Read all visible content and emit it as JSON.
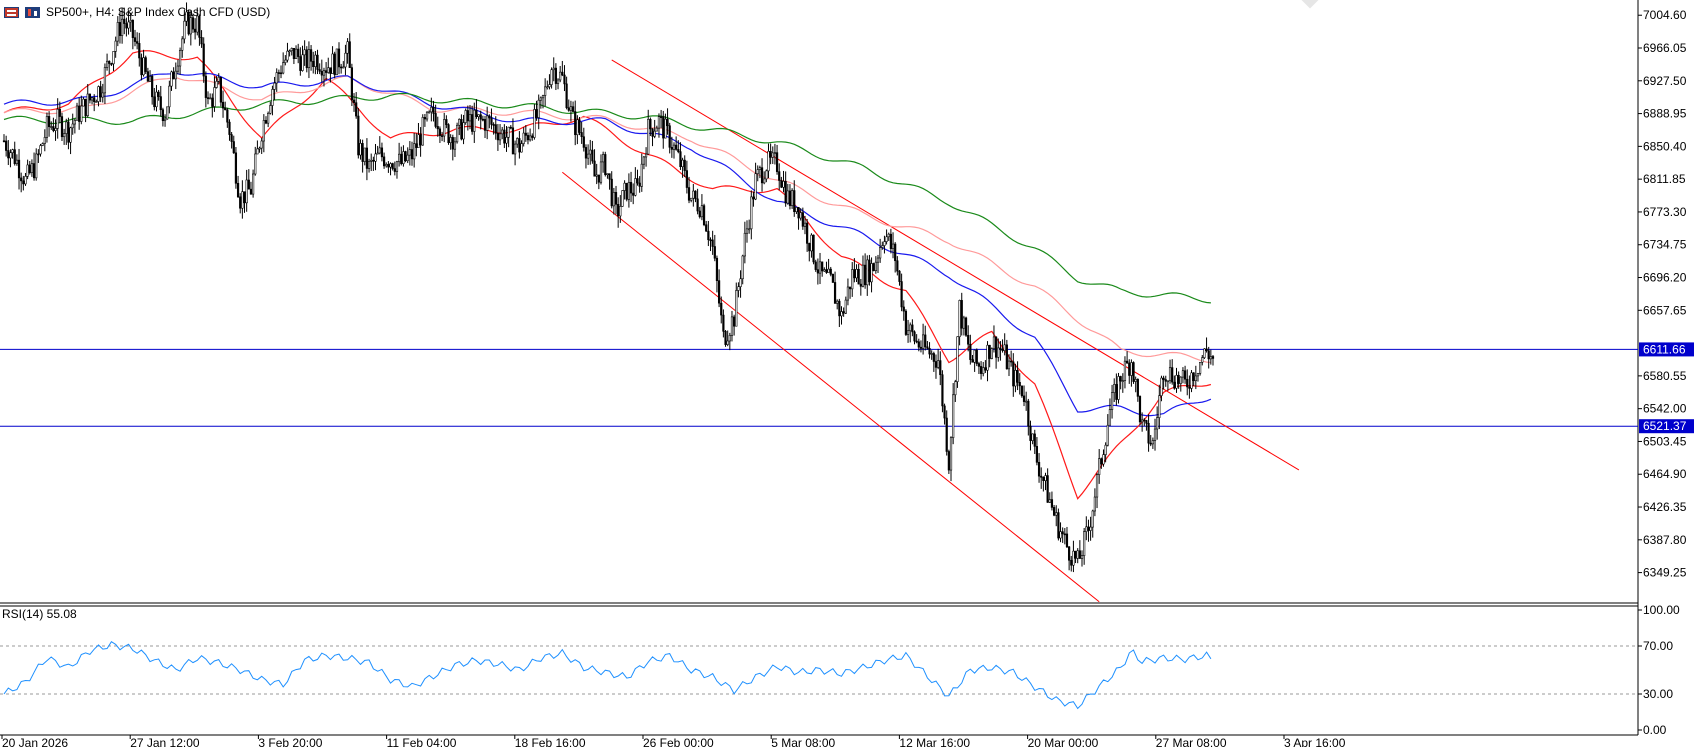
{
  "header": {
    "symbol_label": "SP500+, H4:  S&P Index Cash CFD (USD)"
  },
  "rsi_panel": {
    "label": "RSI(14) 55.08",
    "value": 55.08,
    "levels": [
      "100.00",
      "70.00",
      "30.00",
      "0.00"
    ],
    "ylim": [
      0,
      100
    ]
  },
  "price_axis": {
    "ticks": [
      "7004.60",
      "6966.05",
      "6927.50",
      "6888.95",
      "6850.40",
      "6811.85",
      "6773.30",
      "6734.75",
      "6696.20",
      "6657.65",
      "6580.55",
      "6542.00",
      "6503.45",
      "6464.90",
      "6426.35",
      "6387.80",
      "6349.25"
    ],
    "ylim": [
      6313.5,
      7022.5
    ]
  },
  "time_axis": {
    "ticks": [
      "20 Jan 2026",
      "27 Jan 12:00",
      "3 Feb 20:00",
      "11 Feb 04:00",
      "18 Feb 16:00",
      "26 Feb 00:00",
      "5 Mar 08:00",
      "12 Mar 16:00",
      "20 Mar 00:00",
      "27 Mar 08:00",
      "3 Apr 16:00"
    ]
  },
  "levels": {
    "upper": {
      "price": 6611.66,
      "label": "6611.66",
      "color": "#0000cc"
    },
    "lower": {
      "price": 6521.37,
      "label": "6521.37",
      "color": "#0000cc"
    }
  },
  "colors": {
    "candle": "#000000",
    "ma_fast": "#ff1a1a",
    "ma_mid": "#1a1aee",
    "ma_slow_light": "#ff9a9a",
    "ma_long": "#1a8a1a",
    "channel": "#ff0000",
    "rsi": "#1e90ff",
    "level": "#0000cc"
  },
  "chart_data": {
    "type": "candlestick",
    "x_unit": "bar index (H4)",
    "close_path": [
      [
        0,
        6857
      ],
      [
        5,
        6838
      ],
      [
        10,
        6810
      ],
      [
        15,
        6830
      ],
      [
        20,
        6872
      ],
      [
        25,
        6880
      ],
      [
        30,
        6870
      ],
      [
        35,
        6890
      ],
      [
        40,
        6905
      ],
      [
        45,
        6920
      ],
      [
        50,
        6960
      ],
      [
        55,
        7000
      ],
      [
        60,
        6980
      ],
      [
        65,
        6940
      ],
      [
        70,
        6905
      ],
      [
        75,
        6890
      ],
      [
        80,
        6950
      ],
      [
        85,
        6995
      ],
      [
        90,
        6995
      ],
      [
        95,
        6900
      ],
      [
        100,
        6920
      ],
      [
        105,
        6870
      ],
      [
        110,
        6790
      ],
      [
        115,
        6800
      ],
      [
        120,
        6870
      ],
      [
        125,
        6920
      ],
      [
        130,
        6950
      ],
      [
        135,
        6960
      ],
      [
        140,
        6950
      ],
      [
        145,
        6955
      ],
      [
        150,
        6945
      ],
      [
        155,
        6950
      ],
      [
        160,
        6960
      ],
      [
        165,
        6850
      ],
      [
        170,
        6825
      ],
      [
        175,
        6840
      ],
      [
        180,
        6835
      ],
      [
        185,
        6830
      ],
      [
        190,
        6840
      ],
      [
        195,
        6870
      ],
      [
        200,
        6890
      ],
      [
        205,
        6870
      ],
      [
        210,
        6860
      ],
      [
        215,
        6880
      ],
      [
        220,
        6880
      ],
      [
        225,
        6880
      ],
      [
        230,
        6870
      ],
      [
        235,
        6860
      ],
      [
        240,
        6850
      ],
      [
        245,
        6870
      ],
      [
        250,
        6895
      ],
      [
        255,
        6945
      ],
      [
        260,
        6930
      ],
      [
        265,
        6880
      ],
      [
        270,
        6860
      ],
      [
        275,
        6815
      ],
      [
        280,
        6830
      ],
      [
        285,
        6770
      ],
      [
        290,
        6800
      ],
      [
        295,
        6800
      ],
      [
        300,
        6870
      ],
      [
        305,
        6880
      ],
      [
        310,
        6860
      ],
      [
        315,
        6830
      ],
      [
        320,
        6790
      ],
      [
        325,
        6780
      ],
      [
        330,
        6730
      ],
      [
        335,
        6625
      ],
      [
        340,
        6650
      ],
      [
        345,
        6740
      ],
      [
        350,
        6810
      ],
      [
        355,
        6830
      ],
      [
        360,
        6830
      ],
      [
        365,
        6790
      ],
      [
        370,
        6780
      ],
      [
        375,
        6740
      ],
      [
        380,
        6700
      ],
      [
        385,
        6690
      ],
      [
        390,
        6650
      ],
      [
        395,
        6700
      ],
      [
        400,
        6700
      ],
      [
        405,
        6710
      ],
      [
        410,
        6750
      ],
      [
        415,
        6720
      ],
      [
        420,
        6640
      ],
      [
        425,
        6620
      ],
      [
        430,
        6610
      ],
      [
        435,
        6600
      ],
      [
        440,
        6480
      ],
      [
        445,
        6660
      ],
      [
        450,
        6600
      ],
      [
        455,
        6590
      ],
      [
        460,
        6620
      ],
      [
        465,
        6610
      ],
      [
        470,
        6580
      ],
      [
        475,
        6560
      ],
      [
        480,
        6490
      ],
      [
        485,
        6450
      ],
      [
        490,
        6410
      ],
      [
        495,
        6380
      ],
      [
        500,
        6360
      ],
      [
        505,
        6400
      ],
      [
        510,
        6470
      ],
      [
        515,
        6540
      ],
      [
        520,
        6580
      ],
      [
        525,
        6600
      ],
      [
        530,
        6520
      ],
      [
        535,
        6500
      ],
      [
        540,
        6590
      ],
      [
        545,
        6580
      ],
      [
        550,
        6570
      ],
      [
        555,
        6590
      ],
      [
        560,
        6610
      ],
      [
        563,
        6600
      ]
    ],
    "moving_averages": [
      {
        "name": "MA fast",
        "color": "#ff1a1a",
        "path": [
          [
            0,
            6890
          ],
          [
            30,
            6900
          ],
          [
            60,
            6960
          ],
          [
            90,
            6955
          ],
          [
            120,
            6860
          ],
          [
            150,
            6930
          ],
          [
            180,
            6860
          ],
          [
            210,
            6870
          ],
          [
            240,
            6870
          ],
          [
            270,
            6885
          ],
          [
            300,
            6840
          ],
          [
            330,
            6800
          ],
          [
            360,
            6800
          ],
          [
            390,
            6720
          ],
          [
            420,
            6680
          ],
          [
            440,
            6600
          ],
          [
            460,
            6630
          ],
          [
            480,
            6570
          ],
          [
            500,
            6440
          ],
          [
            520,
            6500
          ],
          [
            540,
            6560
          ],
          [
            563,
            6575
          ]
        ]
      },
      {
        "name": "MA slow",
        "color": "#ff9a9a",
        "path": [
          [
            0,
            6890
          ],
          [
            40,
            6895
          ],
          [
            80,
            6935
          ],
          [
            120,
            6905
          ],
          [
            160,
            6930
          ],
          [
            200,
            6895
          ],
          [
            240,
            6890
          ],
          [
            280,
            6882
          ],
          [
            320,
            6860
          ],
          [
            360,
            6810
          ],
          [
            400,
            6770
          ],
          [
            440,
            6740
          ],
          [
            480,
            6685
          ],
          [
            520,
            6610
          ],
          [
            563,
            6600
          ]
        ]
      },
      {
        "name": "MA mid",
        "color": "#1a1aee",
        "path": [
          [
            0,
            6900
          ],
          [
            40,
            6905
          ],
          [
            80,
            6940
          ],
          [
            120,
            6920
          ],
          [
            160,
            6930
          ],
          [
            200,
            6900
          ],
          [
            240,
            6880
          ],
          [
            280,
            6880
          ],
          [
            320,
            6850
          ],
          [
            360,
            6785
          ],
          [
            400,
            6745
          ],
          [
            440,
            6700
          ],
          [
            480,
            6625
          ],
          [
            500,
            6542
          ],
          [
            520,
            6542
          ],
          [
            540,
            6535
          ],
          [
            563,
            6558
          ]
        ]
      },
      {
        "name": "MA long",
        "color": "#1a8a1a",
        "path": [
          [
            0,
            6882
          ],
          [
            60,
            6880
          ],
          [
            120,
            6900
          ],
          [
            180,
            6910
          ],
          [
            240,
            6898
          ],
          [
            300,
            6885
          ],
          [
            360,
            6855
          ],
          [
            400,
            6825
          ],
          [
            440,
            6785
          ],
          [
            480,
            6730
          ],
          [
            500,
            6695
          ],
          [
            520,
            6680
          ],
          [
            563,
            6670
          ]
        ]
      }
    ],
    "channel": [
      {
        "name": "channel-upper",
        "from": [
          283,
          6952
        ],
        "to": [
          603,
          6470
        ]
      },
      {
        "name": "channel-lower",
        "from": [
          260,
          6820
        ],
        "to": [
          510,
          6315
        ]
      }
    ],
    "rsi_path": [
      [
        0,
        30
      ],
      [
        10,
        40
      ],
      [
        20,
        60
      ],
      [
        30,
        52
      ],
      [
        40,
        66
      ],
      [
        50,
        71
      ],
      [
        60,
        68
      ],
      [
        70,
        58
      ],
      [
        80,
        50
      ],
      [
        90,
        60
      ],
      [
        100,
        56
      ],
      [
        110,
        50
      ],
      [
        120,
        42
      ],
      [
        130,
        38
      ],
      [
        140,
        58
      ],
      [
        150,
        62
      ],
      [
        160,
        60
      ],
      [
        170,
        56
      ],
      [
        180,
        42
      ],
      [
        190,
        36
      ],
      [
        200,
        45
      ],
      [
        210,
        54
      ],
      [
        220,
        58
      ],
      [
        230,
        55
      ],
      [
        240,
        50
      ],
      [
        250,
        60
      ],
      [
        260,
        64
      ],
      [
        270,
        52
      ],
      [
        280,
        48
      ],
      [
        290,
        44
      ],
      [
        300,
        57
      ],
      [
        310,
        62
      ],
      [
        320,
        50
      ],
      [
        330,
        44
      ],
      [
        340,
        33
      ],
      [
        350,
        44
      ],
      [
        360,
        53
      ],
      [
        370,
        48
      ],
      [
        380,
        50
      ],
      [
        390,
        47
      ],
      [
        400,
        52
      ],
      [
        410,
        58
      ],
      [
        420,
        62
      ],
      [
        430,
        45
      ],
      [
        440,
        28
      ],
      [
        450,
        50
      ],
      [
        460,
        52
      ],
      [
        470,
        48
      ],
      [
        480,
        36
      ],
      [
        490,
        25
      ],
      [
        500,
        20
      ],
      [
        510,
        36
      ],
      [
        520,
        52
      ],
      [
        525,
        66
      ],
      [
        530,
        57
      ],
      [
        540,
        60
      ],
      [
        550,
        59
      ],
      [
        560,
        62
      ],
      [
        563,
        58
      ]
    ]
  }
}
